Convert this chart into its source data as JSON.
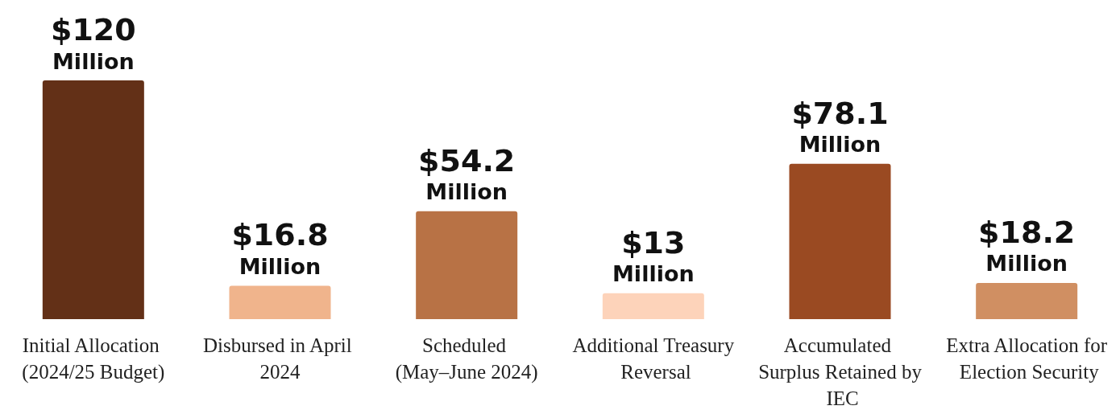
{
  "chart_data": {
    "type": "bar",
    "categories": [
      "Initial Allocation (2024/25 Budget)",
      "Disbursed in April 2024",
      "Scheduled (May–June 2024)",
      "Additional Treasury Reversal",
      "Accumulated Surplus Retained by IEC",
      "Extra Allocation for Election Security"
    ],
    "values": [
      120,
      16.8,
      54.2,
      13,
      78.1,
      18.2
    ],
    "colors": [
      "#633017",
      "#f0b48c",
      "#b87245",
      "#fdd3ba",
      "#9a4a22",
      "#d08f62"
    ],
    "value_labels": [
      "$120 Million",
      "$16.8 Million",
      "$54.2 Million",
      "$13 Million",
      "$78.1 Million",
      "$18.2 Million"
    ],
    "tick_labels": "x"
  }
}
